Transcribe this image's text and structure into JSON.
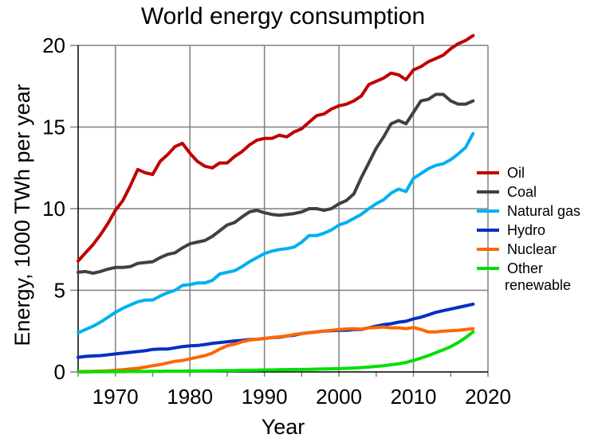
{
  "chart_data": {
    "type": "line",
    "title": "World energy consumption",
    "xlabel": "Year",
    "ylabel": "Energy, 1000 TWh per year",
    "xlim": [
      1965,
      2020
    ],
    "ylim": [
      0,
      20
    ],
    "xticks": [
      1970,
      1980,
      1990,
      2000,
      2010,
      2020
    ],
    "xtick_labels": [
      "1970",
      "1980",
      "1990",
      "2000",
      "2010",
      "2020"
    ],
    "yticks": [
      0,
      5,
      10,
      15,
      20
    ],
    "ytick_labels": [
      "0",
      "5",
      "10",
      "15",
      "20"
    ],
    "grid": true,
    "legend_position": "right",
    "x": [
      1965,
      1966,
      1967,
      1968,
      1969,
      1970,
      1971,
      1972,
      1973,
      1974,
      1975,
      1976,
      1977,
      1978,
      1979,
      1980,
      1981,
      1982,
      1983,
      1984,
      1985,
      1986,
      1987,
      1988,
      1989,
      1990,
      1991,
      1992,
      1993,
      1994,
      1995,
      1996,
      1997,
      1998,
      1999,
      2000,
      2001,
      2002,
      2003,
      2004,
      2005,
      2006,
      2007,
      2008,
      2009,
      2010,
      2011,
      2012,
      2013,
      2014,
      2015,
      2016,
      2017,
      2018
    ],
    "series": [
      {
        "name": "Oil",
        "color": "#c00000",
        "values": [
          6.8,
          7.3,
          7.8,
          8.4,
          9.1,
          9.9,
          10.5,
          11.4,
          12.4,
          12.2,
          12.1,
          12.9,
          13.3,
          13.8,
          14.0,
          13.4,
          12.9,
          12.6,
          12.5,
          12.8,
          12.8,
          13.2,
          13.5,
          13.9,
          14.2,
          14.3,
          14.3,
          14.5,
          14.4,
          14.7,
          14.9,
          15.3,
          15.7,
          15.8,
          16.1,
          16.3,
          16.4,
          16.6,
          16.9,
          17.6,
          17.8,
          18.0,
          18.3,
          18.2,
          17.9,
          18.5,
          18.7,
          19.0,
          19.2,
          19.4,
          19.8,
          20.1,
          20.3,
          20.6
        ]
      },
      {
        "name": "Coal",
        "color": "#404040",
        "values": [
          6.1,
          6.15,
          6.05,
          6.15,
          6.3,
          6.4,
          6.4,
          6.45,
          6.65,
          6.7,
          6.75,
          7.0,
          7.2,
          7.3,
          7.6,
          7.85,
          7.95,
          8.05,
          8.3,
          8.65,
          9.0,
          9.15,
          9.5,
          9.8,
          9.9,
          9.75,
          9.65,
          9.6,
          9.65,
          9.7,
          9.8,
          10.0,
          10.0,
          9.9,
          10.0,
          10.3,
          10.5,
          10.9,
          11.9,
          12.8,
          13.7,
          14.4,
          15.2,
          15.4,
          15.2,
          15.9,
          16.6,
          16.7,
          17.0,
          17.0,
          16.6,
          16.4,
          16.4,
          16.6
        ]
      },
      {
        "name": "Natural gas",
        "color": "#00b0f0",
        "values": [
          2.4,
          2.6,
          2.8,
          3.05,
          3.35,
          3.65,
          3.9,
          4.1,
          4.3,
          4.4,
          4.4,
          4.65,
          4.85,
          5.0,
          5.3,
          5.35,
          5.45,
          5.45,
          5.6,
          6.0,
          6.1,
          6.2,
          6.45,
          6.75,
          7.0,
          7.25,
          7.4,
          7.5,
          7.55,
          7.65,
          7.95,
          8.35,
          8.35,
          8.5,
          8.7,
          9.0,
          9.15,
          9.4,
          9.65,
          10.0,
          10.3,
          10.55,
          10.95,
          11.2,
          11.05,
          11.85,
          12.15,
          12.45,
          12.65,
          12.75,
          13.0,
          13.35,
          13.75,
          14.6
        ]
      },
      {
        "name": "Hydro",
        "color": "#0030c0",
        "values": [
          0.9,
          0.95,
          0.98,
          1.0,
          1.05,
          1.1,
          1.15,
          1.2,
          1.25,
          1.3,
          1.38,
          1.4,
          1.4,
          1.48,
          1.55,
          1.6,
          1.62,
          1.68,
          1.75,
          1.8,
          1.85,
          1.9,
          1.93,
          1.98,
          2.0,
          2.05,
          2.1,
          2.12,
          2.2,
          2.25,
          2.35,
          2.4,
          2.45,
          2.5,
          2.52,
          2.55,
          2.55,
          2.6,
          2.6,
          2.7,
          2.8,
          2.9,
          2.95,
          3.05,
          3.1,
          3.25,
          3.35,
          3.5,
          3.65,
          3.75,
          3.85,
          3.95,
          4.05,
          4.15
        ]
      },
      {
        "name": "Nuclear",
        "color": "#ff6600",
        "values": [
          0.02,
          0.03,
          0.04,
          0.05,
          0.07,
          0.1,
          0.13,
          0.18,
          0.22,
          0.3,
          0.38,
          0.45,
          0.55,
          0.65,
          0.7,
          0.8,
          0.9,
          1.0,
          1.15,
          1.4,
          1.6,
          1.7,
          1.85,
          1.95,
          2.0,
          2.05,
          2.1,
          2.15,
          2.2,
          2.3,
          2.35,
          2.4,
          2.45,
          2.5,
          2.55,
          2.6,
          2.63,
          2.65,
          2.62,
          2.7,
          2.72,
          2.75,
          2.7,
          2.7,
          2.65,
          2.72,
          2.6,
          2.45,
          2.45,
          2.5,
          2.52,
          2.55,
          2.6,
          2.65
        ]
      },
      {
        "name": "Other renewable",
        "color": "#00e000",
        "values": [
          0.0,
          0.0,
          0.01,
          0.01,
          0.02,
          0.02,
          0.02,
          0.03,
          0.03,
          0.03,
          0.04,
          0.04,
          0.05,
          0.05,
          0.05,
          0.06,
          0.06,
          0.07,
          0.07,
          0.08,
          0.08,
          0.09,
          0.1,
          0.1,
          0.11,
          0.12,
          0.12,
          0.13,
          0.14,
          0.15,
          0.15,
          0.16,
          0.17,
          0.18,
          0.19,
          0.2,
          0.22,
          0.24,
          0.27,
          0.3,
          0.34,
          0.38,
          0.44,
          0.5,
          0.58,
          0.7,
          0.85,
          1.0,
          1.18,
          1.35,
          1.55,
          1.8,
          2.1,
          2.45
        ]
      }
    ]
  }
}
